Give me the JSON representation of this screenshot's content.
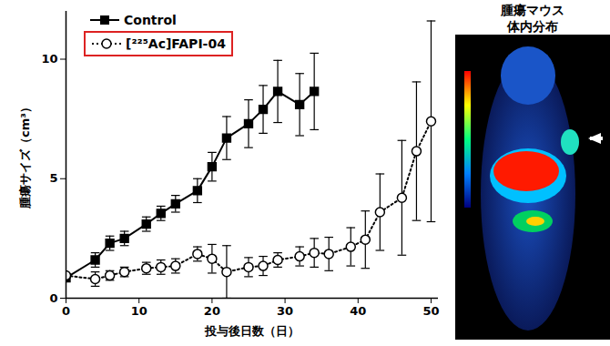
{
  "chart_data": {
    "type": "line",
    "x_label": "投与後日数（日）",
    "y_label": "腫瘍サイズ（cm³）",
    "xlim": [
      0,
      51
    ],
    "xticks": [
      0,
      10,
      20,
      30,
      40,
      50
    ],
    "ylim": [
      0,
      12
    ],
    "yticks": [
      0,
      5,
      10
    ],
    "grid": false,
    "legend": "top-left",
    "series": [
      {
        "name": "Control",
        "color": "#000000",
        "marker": "square",
        "line_style": "solid",
        "x": [
          0,
          4,
          6,
          8,
          11,
          13,
          15,
          18,
          20,
          22,
          25,
          27,
          29,
          32,
          34
        ],
        "values": [
          0.85,
          1.6,
          2.3,
          2.5,
          3.1,
          3.55,
          3.95,
          4.5,
          5.5,
          6.7,
          7.3,
          7.9,
          8.65,
          8.1,
          8.65
        ],
        "errors": [
          0,
          0.3,
          0.3,
          0.3,
          0.3,
          0.3,
          0.35,
          0.5,
          0.6,
          0.9,
          1.0,
          1.0,
          1.3,
          1.3,
          1.6
        ]
      },
      {
        "name": "[²²⁵Ac]FAPI-04",
        "color": "#000000",
        "marker": "circle",
        "line_style": "dotted",
        "x": [
          0,
          4,
          6,
          8,
          11,
          13,
          15,
          18,
          20,
          22,
          25,
          27,
          29,
          32,
          34,
          36,
          39,
          41,
          43,
          46,
          48,
          50
        ],
        "values": [
          0.95,
          0.8,
          0.95,
          1.1,
          1.25,
          1.3,
          1.35,
          1.85,
          1.65,
          1.1,
          1.3,
          1.35,
          1.6,
          1.75,
          1.9,
          1.85,
          2.15,
          2.45,
          3.6,
          4.2,
          6.15,
          7.4
        ],
        "errors": [
          0,
          0.3,
          0.2,
          0.2,
          0.25,
          0.3,
          0.3,
          0.3,
          0.6,
          1.1,
          0.4,
          0.4,
          0.3,
          0.4,
          0.6,
          0.7,
          0.8,
          1.2,
          1.6,
          2.4,
          2.9,
          4.2
        ]
      }
    ],
    "annotations": [
      "腫瘍マウス",
      "体内分布"
    ]
  }
}
